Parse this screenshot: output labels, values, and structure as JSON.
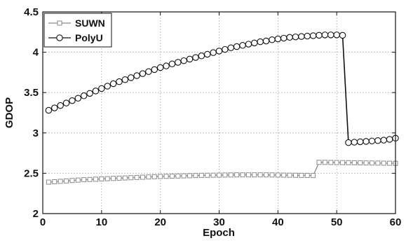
{
  "chart_data": {
    "type": "line",
    "title": "",
    "xlabel": "Epoch",
    "ylabel": "GDOP",
    "xlim": [
      0,
      60
    ],
    "ylim": [
      2,
      4.5
    ],
    "xticks": [
      0,
      10,
      20,
      30,
      40,
      50,
      60
    ],
    "yticks": [
      2,
      2.5,
      3,
      3.5,
      4,
      4.5
    ],
    "xtick_labels": [
      "0",
      "10",
      "20",
      "30",
      "40",
      "50",
      "60"
    ],
    "ytick_labels": [
      "2",
      "2.5",
      "3",
      "3.5",
      "4",
      "4.5"
    ],
    "grid": true,
    "legend": {
      "position": "top-left"
    },
    "series": [
      {
        "name": "SUWN",
        "marker": "square",
        "color": "#8a8a8a",
        "x": [
          1,
          2,
          3,
          4,
          5,
          6,
          7,
          8,
          9,
          10,
          11,
          12,
          13,
          14,
          15,
          16,
          17,
          18,
          19,
          20,
          21,
          22,
          23,
          24,
          25,
          26,
          27,
          28,
          29,
          30,
          31,
          32,
          33,
          34,
          35,
          36,
          37,
          38,
          39,
          40,
          41,
          42,
          43,
          44,
          45,
          46,
          47,
          48,
          49,
          50,
          51,
          52,
          53,
          54,
          55,
          56,
          57,
          58,
          59,
          60
        ],
        "values": [
          2.39,
          2.395,
          2.4,
          2.405,
          2.41,
          2.415,
          2.42,
          2.423,
          2.426,
          2.43,
          2.433,
          2.436,
          2.439,
          2.442,
          2.445,
          2.448,
          2.451,
          2.454,
          2.457,
          2.46,
          2.462,
          2.464,
          2.466,
          2.468,
          2.47,
          2.472,
          2.474,
          2.475,
          2.476,
          2.477,
          2.478,
          2.479,
          2.48,
          2.48,
          2.48,
          2.48,
          2.48,
          2.48,
          2.479,
          2.478,
          2.477,
          2.476,
          2.475,
          2.474,
          2.473,
          2.472,
          2.635,
          2.635,
          2.634,
          2.633,
          2.632,
          2.631,
          2.63,
          2.629,
          2.628,
          2.627,
          2.626,
          2.625,
          2.624,
          2.623
        ]
      },
      {
        "name": "PolyU",
        "marker": "circle",
        "color": "#111111",
        "x": [
          1,
          2,
          3,
          4,
          5,
          6,
          7,
          8,
          9,
          10,
          11,
          12,
          13,
          14,
          15,
          16,
          17,
          18,
          19,
          20,
          21,
          22,
          23,
          24,
          25,
          26,
          27,
          28,
          29,
          30,
          31,
          32,
          33,
          34,
          35,
          36,
          37,
          38,
          39,
          40,
          41,
          42,
          43,
          44,
          45,
          46,
          47,
          48,
          49,
          50,
          51,
          52,
          53,
          54,
          55,
          56,
          57,
          58,
          59,
          60
        ],
        "values": [
          3.28,
          3.31,
          3.34,
          3.37,
          3.4,
          3.43,
          3.46,
          3.49,
          3.52,
          3.55,
          3.58,
          3.61,
          3.635,
          3.66,
          3.685,
          3.71,
          3.735,
          3.76,
          3.785,
          3.81,
          3.83,
          3.855,
          3.875,
          3.895,
          3.915,
          3.935,
          3.955,
          3.975,
          3.995,
          4.015,
          4.035,
          4.055,
          4.07,
          4.085,
          4.1,
          4.115,
          4.13,
          4.14,
          4.155,
          4.165,
          4.175,
          4.185,
          4.19,
          4.195,
          4.2,
          4.205,
          4.21,
          4.215,
          4.215,
          4.215,
          4.21,
          2.88,
          2.885,
          2.89,
          2.895,
          2.9,
          2.905,
          2.91,
          2.92,
          2.935
        ]
      }
    ]
  }
}
